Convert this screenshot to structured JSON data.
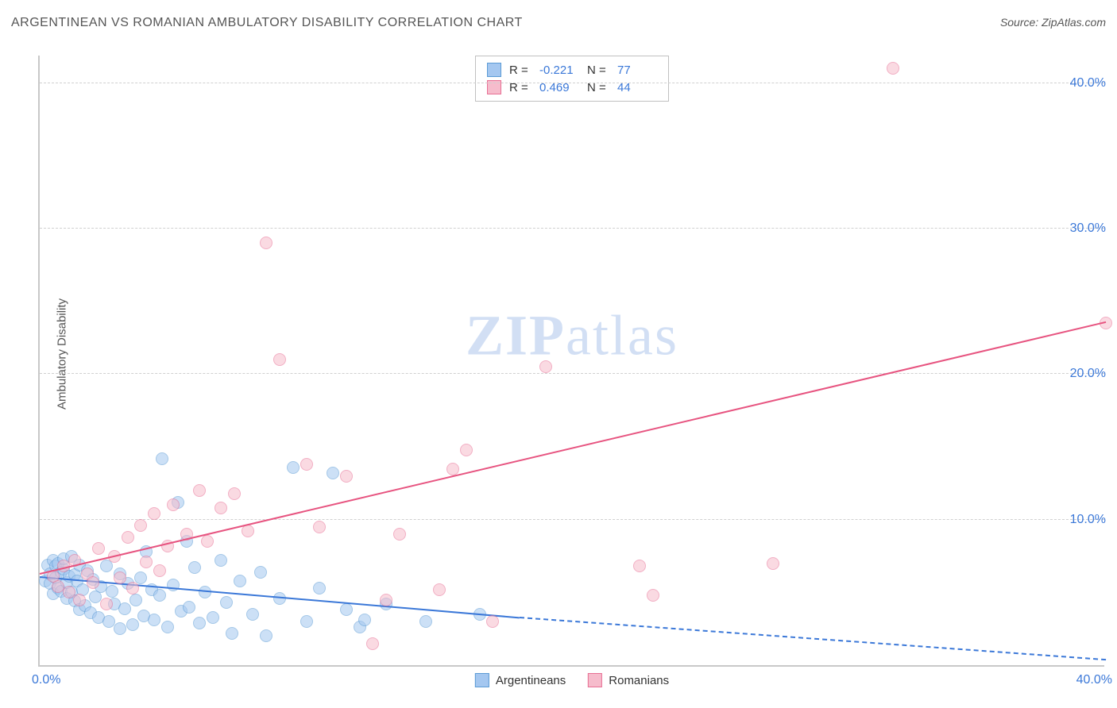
{
  "title": "ARGENTINEAN VS ROMANIAN AMBULATORY DISABILITY CORRELATION CHART",
  "source": "Source: ZipAtlas.com",
  "y_axis_label": "Ambulatory Disability",
  "watermark": {
    "bold": "ZIP",
    "rest": "atlas"
  },
  "chart": {
    "type": "scatter",
    "xlim": [
      0,
      40
    ],
    "ylim": [
      0,
      42
    ],
    "x_ticks": [
      {
        "val": 0,
        "label": "0.0%",
        "pos": "left"
      },
      {
        "val": 40,
        "label": "40.0%",
        "pos": "right"
      }
    ],
    "y_ticks": [
      {
        "val": 10,
        "label": "10.0%"
      },
      {
        "val": 20,
        "label": "20.0%"
      },
      {
        "val": 30,
        "label": "30.0%"
      },
      {
        "val": 40,
        "label": "40.0%"
      }
    ],
    "grid_color": "#d0d0d0",
    "background_color": "#ffffff",
    "point_radius": 8,
    "point_opacity": 0.55,
    "series": [
      {
        "name": "Argentineans",
        "fill": "#a4c7f0",
        "stroke": "#5b9bd5",
        "R": "-0.221",
        "N": "77",
        "trend": {
          "x1": 0,
          "y1": 6.0,
          "x2": 18,
          "y2": 3.2,
          "x2_dash": 40,
          "y2_dash": 0.3,
          "color": "#3b78d8"
        },
        "points": [
          [
            0.2,
            5.8
          ],
          [
            0.3,
            6.9
          ],
          [
            0.4,
            5.6
          ],
          [
            0.4,
            6.3
          ],
          [
            0.5,
            7.2
          ],
          [
            0.5,
            4.9
          ],
          [
            0.6,
            6.0
          ],
          [
            0.6,
            6.8
          ],
          [
            0.7,
            5.3
          ],
          [
            0.7,
            7.0
          ],
          [
            0.8,
            6.4
          ],
          [
            0.8,
            5.1
          ],
          [
            0.9,
            6.6
          ],
          [
            0.9,
            7.3
          ],
          [
            1.0,
            5.7
          ],
          [
            1.0,
            4.6
          ],
          [
            1.1,
            6.1
          ],
          [
            1.2,
            5.0
          ],
          [
            1.2,
            7.5
          ],
          [
            1.3,
            6.2
          ],
          [
            1.3,
            4.4
          ],
          [
            1.4,
            5.8
          ],
          [
            1.5,
            3.8
          ],
          [
            1.5,
            6.9
          ],
          [
            1.6,
            5.2
          ],
          [
            1.7,
            4.1
          ],
          [
            1.8,
            6.5
          ],
          [
            1.9,
            3.6
          ],
          [
            2.0,
            5.9
          ],
          [
            2.1,
            4.7
          ],
          [
            2.2,
            3.3
          ],
          [
            2.3,
            5.4
          ],
          [
            2.5,
            6.8
          ],
          [
            2.6,
            3.0
          ],
          [
            2.7,
            5.1
          ],
          [
            2.8,
            4.2
          ],
          [
            3.0,
            2.5
          ],
          [
            3.0,
            6.3
          ],
          [
            3.2,
            3.9
          ],
          [
            3.3,
            5.6
          ],
          [
            3.5,
            2.8
          ],
          [
            3.6,
            4.5
          ],
          [
            3.8,
            6.0
          ],
          [
            3.9,
            3.4
          ],
          [
            4.0,
            7.8
          ],
          [
            4.2,
            5.2
          ],
          [
            4.3,
            3.1
          ],
          [
            4.5,
            4.8
          ],
          [
            4.6,
            14.2
          ],
          [
            4.8,
            2.6
          ],
          [
            5.0,
            5.5
          ],
          [
            5.2,
            11.2
          ],
          [
            5.3,
            3.7
          ],
          [
            5.5,
            8.5
          ],
          [
            5.6,
            4.0
          ],
          [
            5.8,
            6.7
          ],
          [
            6.0,
            2.9
          ],
          [
            6.2,
            5.0
          ],
          [
            6.5,
            3.3
          ],
          [
            6.8,
            7.2
          ],
          [
            7.0,
            4.3
          ],
          [
            7.2,
            2.2
          ],
          [
            7.5,
            5.8
          ],
          [
            8.0,
            3.5
          ],
          [
            8.3,
            6.4
          ],
          [
            8.5,
            2.0
          ],
          [
            9.0,
            4.6
          ],
          [
            9.5,
            13.6
          ],
          [
            10.0,
            3.0
          ],
          [
            10.5,
            5.3
          ],
          [
            11.0,
            13.2
          ],
          [
            11.5,
            3.8
          ],
          [
            12.0,
            2.6
          ],
          [
            12.2,
            3.1
          ],
          [
            13.0,
            4.2
          ],
          [
            14.5,
            3.0
          ],
          [
            16.5,
            3.5
          ]
        ]
      },
      {
        "name": "Romanians",
        "fill": "#f6bccc",
        "stroke": "#e86f94",
        "R": "0.469",
        "N": "44",
        "trend": {
          "x1": 0,
          "y1": 6.2,
          "x2": 40,
          "y2": 23.5,
          "color": "#e75480"
        },
        "points": [
          [
            0.5,
            6.1
          ],
          [
            0.7,
            5.4
          ],
          [
            0.9,
            6.8
          ],
          [
            1.1,
            5.0
          ],
          [
            1.3,
            7.2
          ],
          [
            1.5,
            4.5
          ],
          [
            1.8,
            6.3
          ],
          [
            2.0,
            5.7
          ],
          [
            2.2,
            8.0
          ],
          [
            2.5,
            4.2
          ],
          [
            2.8,
            7.5
          ],
          [
            3.0,
            6.0
          ],
          [
            3.3,
            8.8
          ],
          [
            3.5,
            5.3
          ],
          [
            3.8,
            9.6
          ],
          [
            4.0,
            7.1
          ],
          [
            4.3,
            10.4
          ],
          [
            4.5,
            6.5
          ],
          [
            4.8,
            8.2
          ],
          [
            5.0,
            11.0
          ],
          [
            5.5,
            9.0
          ],
          [
            6.0,
            12.0
          ],
          [
            6.3,
            8.5
          ],
          [
            6.8,
            10.8
          ],
          [
            7.3,
            11.8
          ],
          [
            7.8,
            9.2
          ],
          [
            8.5,
            29.0
          ],
          [
            9.0,
            21.0
          ],
          [
            10.0,
            13.8
          ],
          [
            10.5,
            9.5
          ],
          [
            11.5,
            13.0
          ],
          [
            12.5,
            1.5
          ],
          [
            13.0,
            4.5
          ],
          [
            13.5,
            9.0
          ],
          [
            15.0,
            5.2
          ],
          [
            15.5,
            13.5
          ],
          [
            16.0,
            14.8
          ],
          [
            17.0,
            3.0
          ],
          [
            19.0,
            20.5
          ],
          [
            22.5,
            6.8
          ],
          [
            23.0,
            4.8
          ],
          [
            27.5,
            7.0
          ],
          [
            32.0,
            41.0
          ],
          [
            40.0,
            23.5
          ]
        ]
      }
    ]
  },
  "stats_legend": {
    "r_label": "R =",
    "n_label": "N ="
  }
}
